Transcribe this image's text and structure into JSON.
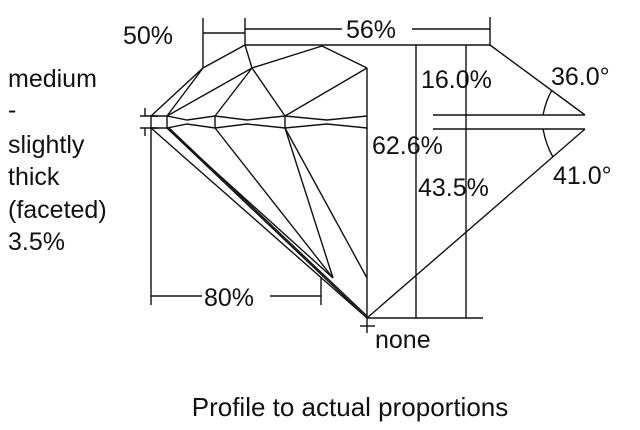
{
  "labels": {
    "crown_angle_left": "50%",
    "table": "56%",
    "crown_height": "16.0%",
    "crown_angle": "36.0°",
    "total_depth": "62.6%",
    "pavilion_depth": "43.5%",
    "pavilion_angle": "41.0°",
    "lower_half": "80%",
    "culet": "none",
    "girdle": [
      "medium",
      "-",
      "slightly",
      "thick",
      "(faceted)",
      "3.5%"
    ]
  },
  "caption": "Profile to actual proportions",
  "colors": {
    "line": "#111111",
    "background": "#ffffff"
  }
}
